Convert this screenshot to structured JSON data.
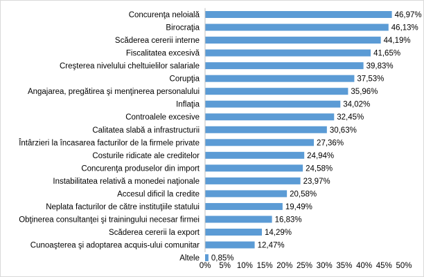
{
  "chart_data": {
    "type": "bar",
    "orientation": "horizontal",
    "categories": [
      "Concurenţa neloială",
      "Birocraţia",
      "Scăderea cererii interne",
      "Fiscalitatea excesivă",
      "Creşterea nivelului cheltuielilor salariale",
      "Corupţia",
      "Angajarea, pregătirea şi menţinerea personalului",
      "Inflaţia",
      "Controalele excesive",
      "Calitatea slabă a infrastructurii",
      "Întârzieri la încasarea facturilor de la firmele private",
      "Costurile ridicate ale creditelor",
      "Concurenţa produselor din import",
      "Instabilitatea relativă a monedei naţionale",
      "Accesul dificil la credite",
      "Neplata facturilor de către instituţiile statului",
      "Obţinerea consultanţei şi trainingului necesar firmei",
      "Scăderea cererii la export",
      "Cunoaşterea şi adoptarea acquis-ului comunitar",
      "Altele"
    ],
    "values": [
      46.97,
      46.13,
      44.19,
      41.65,
      39.83,
      37.53,
      35.96,
      34.02,
      32.45,
      30.63,
      27.36,
      24.94,
      24.58,
      23.97,
      20.58,
      19.49,
      16.83,
      14.29,
      12.47,
      0.85
    ],
    "value_labels": [
      "46,97%",
      "46,13%",
      "44,19%",
      "41,65%",
      "39,83%",
      "37,53%",
      "35,96%",
      "34,02%",
      "32,45%",
      "30,63%",
      "27,36%",
      "24,94%",
      "24,58%",
      "23,97%",
      "20,58%",
      "19,49%",
      "16,83%",
      "14,29%",
      "12,47%",
      "0,85%"
    ],
    "x_ticks": [
      0,
      5,
      10,
      15,
      20,
      25,
      30,
      35,
      40,
      45,
      50
    ],
    "x_tick_labels": [
      "0%",
      "5%",
      "10%",
      "15%",
      "20%",
      "25%",
      "30%",
      "35%",
      "40%",
      "45%",
      "50%"
    ],
    "xlim": [
      0,
      50
    ],
    "title": "",
    "xlabel": "",
    "ylabel": "",
    "grid": false,
    "legend": "none",
    "bar_color": "#5b9bd5",
    "axis_color": "#bfbfbf"
  }
}
